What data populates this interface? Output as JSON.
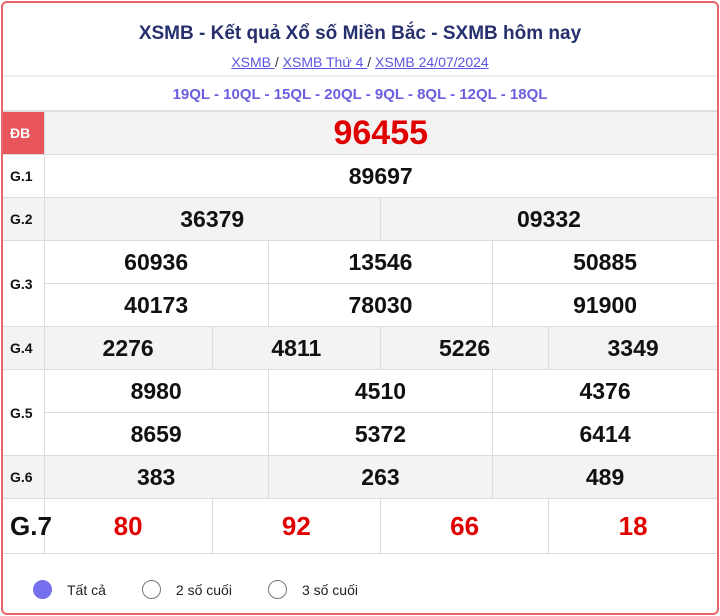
{
  "header": {
    "title": "XSMB - Kết quả Xổ số Miền Bắc - SXMB hôm nay",
    "breadcrumbs": [
      "XSMB ",
      "XSMB Thứ 4 ",
      "XSMB 24/07/2024"
    ],
    "separator": "/"
  },
  "codes": "19QL - 10QL - 15QL - 20QL - 9QL - 8QL - 12QL - 18QL",
  "prizes": {
    "db": {
      "label": "ĐB",
      "values": [
        "96455"
      ]
    },
    "g1": {
      "label": "G.1",
      "values": [
        "89697"
      ]
    },
    "g2": {
      "label": "G.2",
      "values": [
        "36379",
        "09332"
      ]
    },
    "g3": {
      "label": "G.3",
      "values": [
        "60936",
        "13546",
        "50885",
        "40173",
        "78030",
        "91900"
      ]
    },
    "g4": {
      "label": "G.4",
      "values": [
        "2276",
        "4811",
        "5226",
        "3349"
      ]
    },
    "g5": {
      "label": "G.5",
      "values": [
        "8980",
        "4510",
        "4376",
        "8659",
        "5372",
        "6414"
      ]
    },
    "g6": {
      "label": "G.6",
      "values": [
        "383",
        "263",
        "489"
      ]
    },
    "g7": {
      "label": "G.7",
      "values": [
        "80",
        "92",
        "66",
        "18"
      ]
    }
  },
  "filter": {
    "options": [
      "Tất cả",
      "2 số cuối",
      "3 số cuối"
    ],
    "selected": "Tất cả"
  },
  "colors": {
    "accent": "#7670ee",
    "special": "#e00000",
    "border": "#e8676b",
    "title": "#27306e"
  }
}
